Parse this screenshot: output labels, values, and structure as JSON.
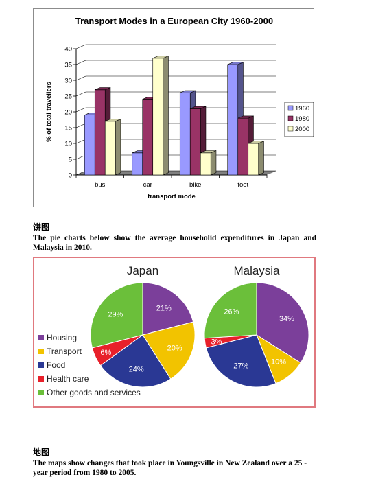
{
  "chart_data": [
    {
      "type": "bar",
      "title": "Transport Modes in a European City 1960-2000",
      "xlabel": "transport mode",
      "ylabel": "% of total travellers",
      "categories": [
        "bus",
        "car",
        "bike",
        "foot"
      ],
      "series": [
        {
          "name": "1960",
          "color": "#9999ff",
          "values": [
            19,
            7,
            26,
            35
          ]
        },
        {
          "name": "1980",
          "color": "#993366",
          "values": [
            27,
            24,
            21,
            18
          ]
        },
        {
          "name": "2000",
          "color": "#ffffcc",
          "values": [
            17,
            37,
            7,
            10
          ]
        }
      ],
      "ylim": [
        0,
        40
      ],
      "yticks": [
        0,
        5,
        10,
        15,
        20,
        25,
        30,
        35,
        40
      ],
      "grid": true,
      "legend": "right"
    },
    {
      "type": "pie",
      "title": "Japan",
      "slices": [
        {
          "label": "Housing",
          "value": 21,
          "text": "21%",
          "color": "#7b3f9a"
        },
        {
          "label": "Transport",
          "value": 20,
          "text": "20%",
          "color": "#f2c300"
        },
        {
          "label": "Food",
          "value": 24,
          "text": "24%",
          "color": "#2a3894"
        },
        {
          "label": "Health care",
          "value": 6,
          "text": "6%",
          "color": "#e8202a"
        },
        {
          "label": "Other goods and services",
          "value": 29,
          "text": "29%",
          "color": "#6bbf3a"
        }
      ]
    },
    {
      "type": "pie",
      "title": "Malaysia",
      "slices": [
        {
          "label": "Housing",
          "value": 34,
          "text": "34%",
          "color": "#7b3f9a"
        },
        {
          "label": "Transport",
          "value": 10,
          "text": "10%",
          "color": "#f2c300"
        },
        {
          "label": "Food",
          "value": 27,
          "text": "27%",
          "color": "#2a3894"
        },
        {
          "label": "Health care",
          "value": 3,
          "text": "3%",
          "color": "#e8202a"
        },
        {
          "label": "Other goods and services",
          "value": 26,
          "text": "26%",
          "color": "#6bbf3a"
        }
      ]
    }
  ],
  "text": {
    "pie_heading": "饼图",
    "pie_paragraph": "The pie charts below show the average householid expenditures in Japan and Malaysia in 2010.",
    "map_heading": "地图",
    "map_paragraph": "The maps show changes that took place in Youngsville in New Zealand over a 25 -year period from 1980 to 2005."
  },
  "pie_legend": [
    "Housing",
    "Transport",
    "Food",
    "Health care",
    "Other goods and services"
  ]
}
